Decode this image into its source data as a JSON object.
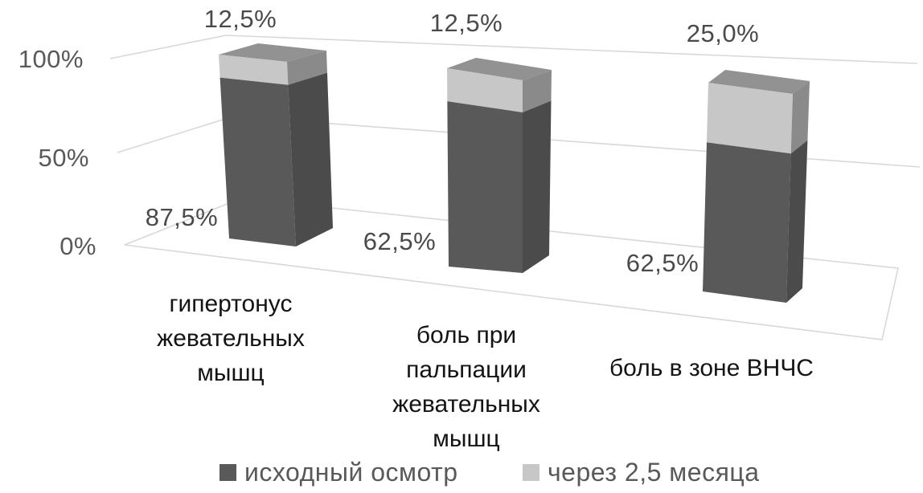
{
  "chart_data": {
    "type": "bar",
    "variant": "3d-100-percent-stacked-column",
    "title": "",
    "categories": [
      "гипертонус\nжевательных\nмышц",
      "боль при\nпальпации\nжевательных\nмышц",
      "боль в зоне ВНЧС"
    ],
    "series": [
      {
        "name": "исходный осмотр",
        "values": [
          87.5,
          62.5,
          62.5
        ],
        "color": "#595959"
      },
      {
        "name": "через 2,5 месяца",
        "values": [
          12.5,
          12.5,
          25.0
        ],
        "color": "#c7c7c7"
      }
    ],
    "data_labels": {
      "series2_top": [
        "12,5%",
        "12,5%",
        "25,0%"
      ],
      "series1_bottom": [
        "87,5%",
        "62,5%",
        "62,5%"
      ]
    },
    "y_axis": {
      "ticks": [
        "100%",
        "50%",
        "0%"
      ],
      "min": 0,
      "max": 100,
      "unit": "%"
    },
    "grid": true,
    "legend_position": "bottom"
  },
  "colors": {
    "series1_front": "#595959",
    "series1_side": "#4b4b4b",
    "series2_front": "#c7c7c7",
    "series2_side": "#8a8a8a",
    "top_face": "#929292",
    "gridline": "#d8d8d8",
    "floor_stroke": "#d8d8d8",
    "background": "#ffffff"
  }
}
